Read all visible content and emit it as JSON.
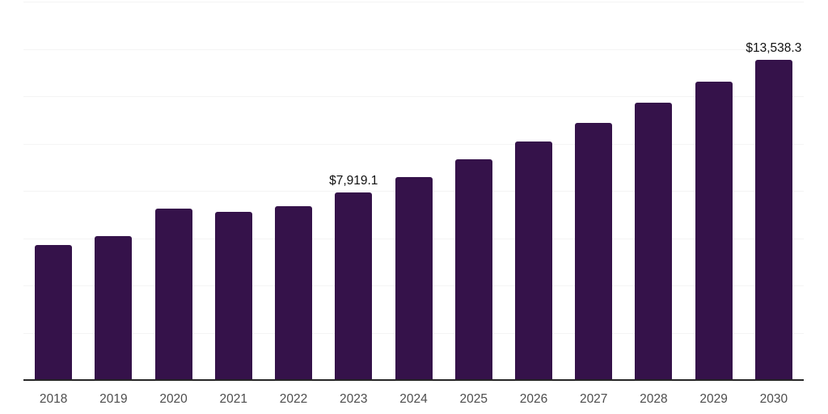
{
  "chart_data": {
    "type": "bar",
    "title": "",
    "xlabel": "",
    "ylabel": "",
    "categories": [
      "2018",
      "2019",
      "2020",
      "2021",
      "2022",
      "2023",
      "2024",
      "2025",
      "2026",
      "2027",
      "2028",
      "2029",
      "2030"
    ],
    "values": [
      5710,
      6090,
      7250,
      7110,
      7350,
      7919.1,
      8580,
      9330,
      10090,
      10870,
      11730,
      12620,
      13538.3
    ],
    "data_labels": [
      {
        "category": "2023",
        "text": "$7,919.1"
      },
      {
        "category": "2030",
        "text": "$13,538.3"
      }
    ],
    "ylim": [
      0,
      16000
    ],
    "gridline_step": 2000,
    "grid": true,
    "y_tick_labels_visible": false,
    "legend": false
  },
  "colors": {
    "bar": "#35124A",
    "gridline": "#f4f4f4",
    "axis_line": "#262626",
    "x_tick_label": "#4d4d4d",
    "data_label": "#111111",
    "background": "#ffffff"
  }
}
